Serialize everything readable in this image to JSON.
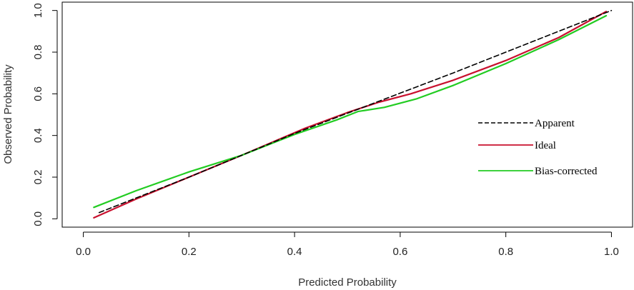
{
  "chart_data": {
    "type": "line",
    "title": "",
    "xlabel": "Predicted Probability",
    "ylabel": "Observed Probability",
    "xlim": [
      -0.04,
      1.04
    ],
    "ylim": [
      -0.04,
      1.04
    ],
    "x_ticks": [
      "0.0",
      "0.2",
      "0.4",
      "0.6",
      "0.8",
      "1.0"
    ],
    "y_ticks": [
      "0.0",
      "0.2",
      "0.4",
      "0.6",
      "0.8",
      "1.0"
    ],
    "legend_position": "right",
    "grid": false,
    "series": [
      {
        "name": "Apparent",
        "color": "#000000",
        "dash": "dashed",
        "points": [
          [
            0.03,
            0.03
          ],
          [
            0.2,
            0.2
          ],
          [
            0.4,
            0.41
          ],
          [
            0.55,
            0.555
          ],
          [
            0.7,
            0.7
          ],
          [
            0.85,
            0.85
          ],
          [
            1.0,
            1.0
          ]
        ]
      },
      {
        "name": "Ideal",
        "color": "#c8102e",
        "dash": "solid",
        "points": [
          [
            0.02,
            0.005
          ],
          [
            0.1,
            0.095
          ],
          [
            0.2,
            0.2
          ],
          [
            0.3,
            0.305
          ],
          [
            0.42,
            0.435
          ],
          [
            0.5,
            0.51
          ],
          [
            0.56,
            0.56
          ],
          [
            0.62,
            0.6
          ],
          [
            0.7,
            0.665
          ],
          [
            0.8,
            0.76
          ],
          [
            0.9,
            0.87
          ],
          [
            0.99,
            0.995
          ]
        ]
      },
      {
        "name": "Bias-corrected",
        "color": "#22cc22",
        "dash": "solid",
        "points": [
          [
            0.02,
            0.055
          ],
          [
            0.1,
            0.135
          ],
          [
            0.2,
            0.225
          ],
          [
            0.3,
            0.305
          ],
          [
            0.4,
            0.405
          ],
          [
            0.48,
            0.475
          ],
          [
            0.52,
            0.515
          ],
          [
            0.57,
            0.535
          ],
          [
            0.63,
            0.575
          ],
          [
            0.7,
            0.64
          ],
          [
            0.8,
            0.745
          ],
          [
            0.9,
            0.86
          ],
          [
            0.99,
            0.975
          ]
        ]
      }
    ]
  }
}
